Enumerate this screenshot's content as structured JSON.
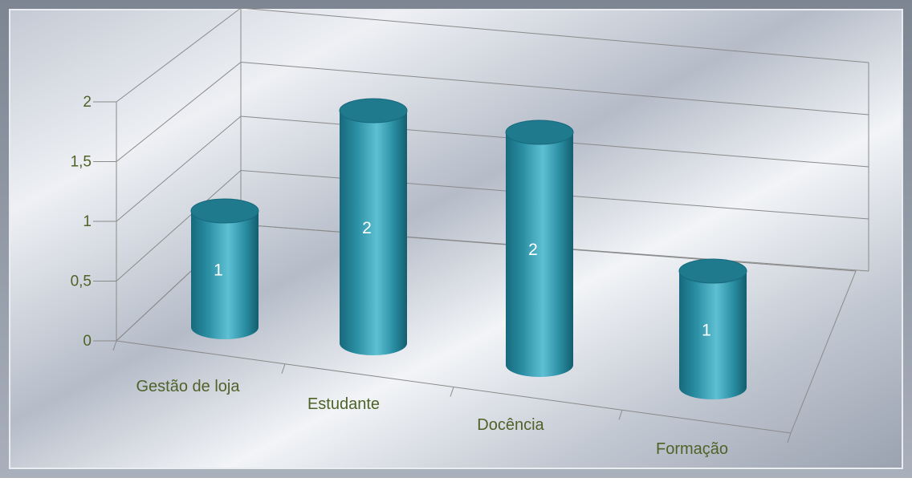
{
  "chart_data": {
    "type": "bar",
    "bar_shape": "3d-cylinder",
    "categories": [
      "Gestão de loja",
      "Estudante",
      "Docência",
      "Formação"
    ],
    "values": [
      1,
      2,
      2,
      1
    ],
    "data_labels": [
      "1",
      "2",
      "2",
      "1"
    ],
    "y_ticks": [
      "0",
      "0,5",
      "1",
      "1,5",
      "2"
    ],
    "ylim": [
      0,
      2
    ],
    "grid": true,
    "legend": "none",
    "title": "",
    "xlabel": "",
    "ylabel": ""
  },
  "colors": {
    "bar": "#2a8ea3",
    "bar_dark": "#17697c",
    "bar_light": "#5fc0d3",
    "bar_top": "#1f7a8d",
    "label_text": "#4f6228",
    "data_label": "#ffffff",
    "grid_line": "#8a8a8a"
  }
}
